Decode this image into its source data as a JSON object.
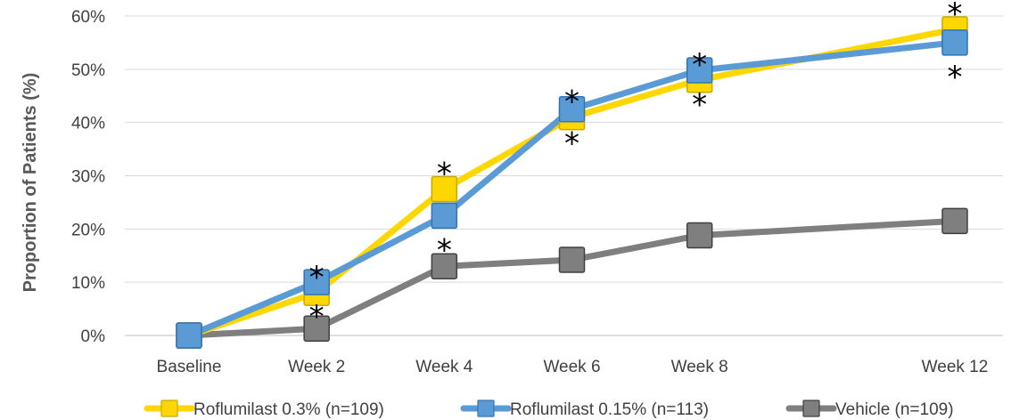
{
  "chart_data": {
    "type": "line",
    "title": "",
    "xlabel": "",
    "ylabel": "Proportion of Patients (%)",
    "x_ticks": [
      {
        "label": "Baseline",
        "week": 0
      },
      {
        "label": "Week 2",
        "week": 2
      },
      {
        "label": "Week 4",
        "week": 4
      },
      {
        "label": "Week 6",
        "week": 6
      },
      {
        "label": "Week 8",
        "week": 8
      },
      {
        "label": "Week 12",
        "week": 12
      }
    ],
    "y_ticks": [
      "0%",
      "10%",
      "20%",
      "30%",
      "40%",
      "50%",
      "60%"
    ],
    "ylim": [
      0,
      60
    ],
    "grid": "horizontal",
    "legend_position": "bottom",
    "significance_marker": "*",
    "series": [
      {
        "name": "Roflumilast 0.3% (n=109)",
        "color": "#FFD700",
        "marker_border": "#C9A800",
        "values": [
          0,
          8,
          27.5,
          41,
          48,
          57.5
        ],
        "significant": [
          false,
          true,
          true,
          true,
          true,
          true
        ],
        "marker_side": "up"
      },
      {
        "name": "Roflumilast 0.15% (n=113)",
        "color": "#5B9BD5",
        "marker_border": "#2E75B6",
        "values": [
          0,
          10,
          22.5,
          42.5,
          49.8,
          55
        ],
        "significant": [
          false,
          true,
          true,
          true,
          true,
          true
        ],
        "marker_side": "down"
      },
      {
        "name": "Vehicle (n=109)",
        "color": "#7F7F7F",
        "marker_border": "#404040",
        "values": [
          0,
          1.3,
          13,
          14.2,
          18.8,
          21.5
        ],
        "significant": [
          false,
          false,
          false,
          false,
          false,
          false
        ],
        "marker_side": "none"
      }
    ]
  }
}
